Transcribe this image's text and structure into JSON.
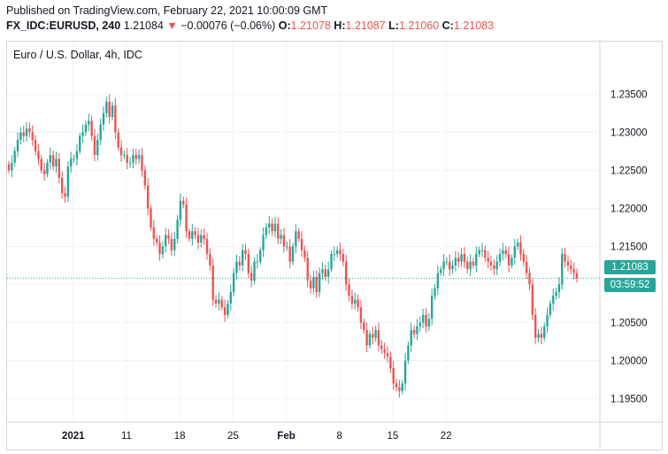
{
  "header": {
    "published": "Published on TradingView.com, February 22, 2021 10:00:09 GMT",
    "symbol": "FX_IDC:EURUSD, 240",
    "last": "1.21084",
    "arrow": "▼",
    "change": "−0.00076 (−0.06%)",
    "open_label": "O:",
    "open": "1.21078",
    "high_label": "H:",
    "high": "1.21087",
    "low_label": "L:",
    "low": "1.21060",
    "close_label": "C:",
    "close": "1.21083"
  },
  "price_label": "1.21083",
  "countdown": "03:59:52",
  "colors": {
    "up": "#26a69a",
    "down": "#ef5350",
    "grid": "#f0f3fa"
  },
  "chart_data": {
    "type": "candlestick",
    "title": "Euro / U.S. Dollar, 4h, IDC",
    "x_ticks": [
      "2021",
      "11",
      "18",
      "25",
      "Feb",
      "8",
      "15",
      "22"
    ],
    "y_ticks": [
      "1.23500",
      "1.23000",
      "1.22500",
      "1.22000",
      "1.21500",
      "1.21000",
      "1.20500",
      "1.20000",
      "1.19500"
    ],
    "ylim": [
      1.1925,
      1.2383
    ],
    "last_price": 1.21083,
    "x_tick_index": [
      11,
      29,
      47,
      65,
      83,
      101,
      119,
      137
    ],
    "closes": [
      1.225,
      1.226,
      1.2275,
      1.229,
      1.23,
      1.2295,
      1.2305,
      1.23,
      1.229,
      1.2275,
      1.2265,
      1.225,
      1.2245,
      1.226,
      1.227,
      1.2255,
      1.2265,
      1.224,
      1.222,
      1.2215,
      1.2255,
      1.2265,
      1.2265,
      1.2275,
      1.2295,
      1.23,
      1.231,
      1.2315,
      1.2295,
      1.227,
      1.229,
      1.231,
      1.2325,
      1.234,
      1.232,
      1.2335,
      1.23,
      1.228,
      1.227,
      1.227,
      1.226,
      1.226,
      1.227,
      1.2265,
      1.227,
      1.225,
      1.223,
      1.22,
      1.2175,
      1.216,
      1.2155,
      1.214,
      1.215,
      1.2165,
      1.216,
      1.2145,
      1.216,
      1.2185,
      1.221,
      1.2205,
      1.217,
      1.216,
      1.217,
      1.2165,
      1.2155,
      1.2165,
      1.216,
      1.214,
      1.2125,
      1.208,
      1.2075,
      1.208,
      1.207,
      1.206,
      1.2075,
      1.209,
      1.2115,
      1.213,
      1.2125,
      1.2145,
      1.214,
      1.2115,
      1.2105,
      1.213,
      1.213,
      1.2145,
      1.2165,
      1.2175,
      1.218,
      1.217,
      1.218,
      1.216,
      1.2165,
      1.215,
      1.215,
      1.213,
      1.215,
      1.217,
      1.216,
      1.2145,
      1.2135,
      1.2105,
      1.2095,
      1.211,
      1.209,
      1.2115,
      1.212,
      1.211,
      1.212,
      1.214,
      1.214,
      1.2145,
      1.214,
      1.213,
      1.21,
      1.2085,
      1.2075,
      1.208,
      1.207,
      1.205,
      1.204,
      1.202,
      1.2035,
      1.203,
      1.204,
      1.202,
      1.2015,
      1.201,
      1.2005,
      1.199,
      1.197,
      1.1965,
      1.196,
      1.197,
      1.2,
      1.202,
      1.204,
      1.2035,
      1.2045,
      1.205,
      1.206,
      1.2045,
      1.2055,
      1.2085,
      1.2095,
      1.2115,
      1.212,
      1.213,
      1.213,
      1.212,
      1.2125,
      1.2135,
      1.213,
      1.214,
      1.213,
      1.212,
      1.213,
      1.2125,
      1.214,
      1.2145,
      1.2145,
      1.2135,
      1.213,
      1.2125,
      1.212,
      1.213,
      1.214,
      1.2145,
      1.214,
      1.2125,
      1.2135,
      1.215,
      1.2155,
      1.214,
      1.213,
      1.2115,
      1.21,
      1.206,
      1.203,
      1.2035,
      1.203,
      1.2045,
      1.206,
      1.2075,
      1.2085,
      1.209,
      1.21,
      1.214,
      1.213,
      1.2125,
      1.212,
      1.2115,
      1.2108
    ]
  }
}
